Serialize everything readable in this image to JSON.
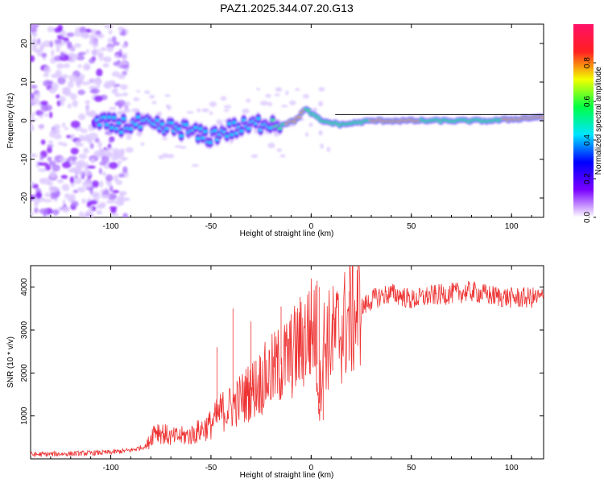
{
  "title": "PAZ1.2025.344.07.20.G13",
  "chart_data": [
    {
      "type": "heatmap",
      "name": "spectrogram",
      "xlabel": "Height of straight line (km)",
      "ylabel": "Frequency (Hz)",
      "xlim": [
        -140,
        116
      ],
      "ylim": [
        -25,
        25
      ],
      "xticks": [
        -100,
        -50,
        0,
        50,
        100
      ],
      "yticks": [
        -20,
        -10,
        0,
        10,
        20
      ],
      "ridge": [
        {
          "x": -105,
          "y": -1.0
        },
        {
          "x": -95,
          "y": -1.0
        },
        {
          "x": -85,
          "y": -1.0
        },
        {
          "x": -75,
          "y": -2.0
        },
        {
          "x": -65,
          "y": -2.0
        },
        {
          "x": -55,
          "y": -4.0
        },
        {
          "x": -50,
          "y": -4.0
        },
        {
          "x": -45,
          "y": -3.0
        },
        {
          "x": -38,
          "y": -2.0
        },
        {
          "x": -30,
          "y": -1.5
        },
        {
          "x": -22,
          "y": 0.0
        },
        {
          "x": -15,
          "y": -1.0
        },
        {
          "x": -8,
          "y": 0.0
        },
        {
          "x": -3,
          "y": 3.0
        },
        {
          "x": 0,
          "y": 2.0
        },
        {
          "x": 5,
          "y": 0.0
        },
        {
          "x": 15,
          "y": -1.0
        },
        {
          "x": 30,
          "y": 0.0
        },
        {
          "x": 60,
          "y": 0.0
        },
        {
          "x": 90,
          "y": 0.0
        },
        {
          "x": 116,
          "y": 1.0
        }
      ],
      "colorbar": {
        "label": "Normalized spectral amplitude",
        "range": [
          0,
          1
        ],
        "ticks": [
          "0.0",
          "0.2",
          "0.4",
          "0.6",
          "0.8"
        ],
        "colors": [
          "#ffffff",
          "#7a00ff",
          "#0000ff",
          "#00e5ff",
          "#00ff44",
          "#f2ff00",
          "#ff2020",
          "#ff1166"
        ]
      }
    },
    {
      "type": "line",
      "name": "snr",
      "xlabel": "Height of straight line (km)",
      "ylabel": "SNR (10 * v/v)",
      "xlim": [
        -140,
        116
      ],
      "ylim": [
        0,
        4500
      ],
      "xticks": [
        -100,
        -50,
        0,
        50,
        100
      ],
      "yticks": [
        1000,
        2000,
        3000,
        4000
      ],
      "color": "#ee3333",
      "series": [
        {
          "name": "SNR",
          "x": [
            -140,
            -120,
            -100,
            -90,
            -82,
            -78,
            -70,
            -60,
            -50,
            -45,
            -40,
            -35,
            -30,
            -25,
            -20,
            -15,
            -10,
            -5,
            -2,
            2,
            4,
            6,
            10,
            15,
            20,
            25,
            30,
            35,
            40,
            45,
            50,
            60,
            70,
            80,
            90,
            100,
            116
          ],
          "values": [
            100,
            120,
            150,
            200,
            300,
            700,
            500,
            550,
            800,
            1100,
            1200,
            1400,
            1600,
            1800,
            2000,
            2200,
            2400,
            2700,
            2900,
            3100,
            1300,
            2700,
            2800,
            3000,
            3300,
            3500,
            3700,
            3800,
            3850,
            3800,
            3700,
            3800,
            3850,
            3900,
            3800,
            3750,
            3750
          ]
        }
      ],
      "spikes": [
        {
          "x": -47,
          "y": 2600
        },
        {
          "x": -39,
          "y": 3500
        },
        {
          "x": -30,
          "y": 3200
        },
        {
          "x": -15,
          "y": 3550
        },
        {
          "x": -1,
          "y": 3900
        },
        {
          "x": 3,
          "y": 4150
        },
        {
          "x": 4,
          "y": 4000
        },
        {
          "x": 6,
          "y": 900
        },
        {
          "x": 19,
          "y": 3900
        }
      ]
    }
  ]
}
